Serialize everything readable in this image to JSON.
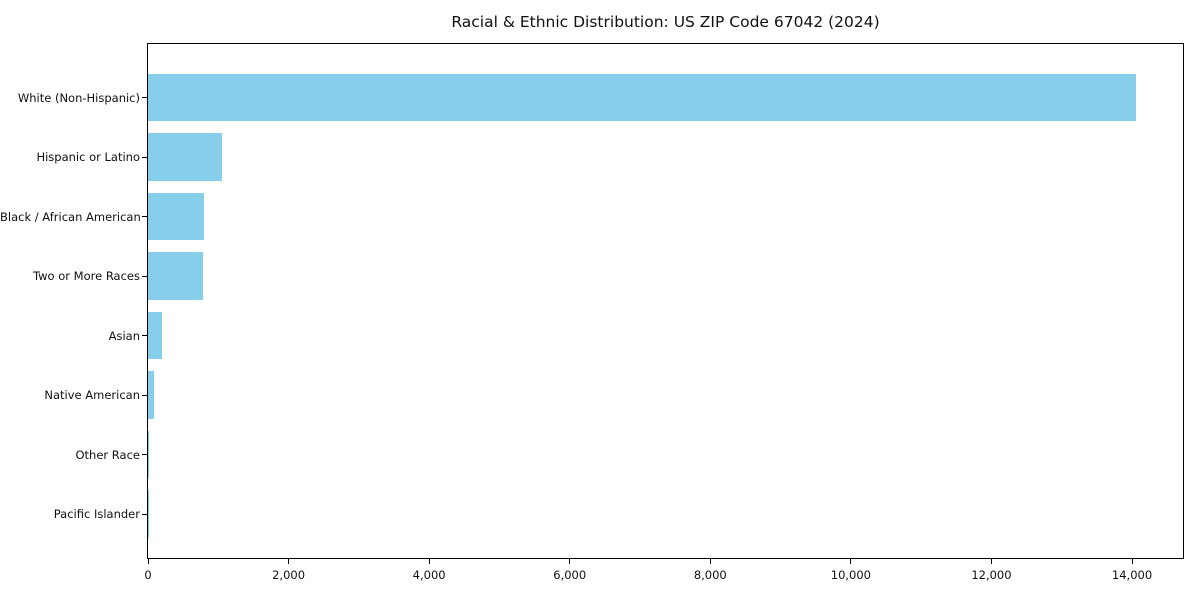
{
  "chart_data": {
    "type": "bar",
    "orientation": "horizontal",
    "title": "Racial & Ethnic Distribution: US ZIP Code 67042 (2024)",
    "categories": [
      "White (Non-Hispanic)",
      "Hispanic or Latino",
      "Black / African American",
      "Two or More Races",
      "Asian",
      "Native American",
      "Other Race",
      "Pacific Islander"
    ],
    "values": [
      14060,
      1050,
      800,
      780,
      195,
      80,
      20,
      5
    ],
    "bar_color": "#87CEEB",
    "background_color": "#ffffff",
    "spine_color": "#000000",
    "text_color": "#111111",
    "xlabel": "",
    "ylabel": "",
    "xlim": [
      0,
      14725
    ],
    "xticks": {
      "values": [
        0,
        2000,
        4000,
        6000,
        8000,
        10000,
        12000,
        14000
      ],
      "labels": [
        "0",
        "2,000",
        "4,000",
        "6,000",
        "8,000",
        "10,000",
        "12,000",
        "14,000"
      ]
    },
    "grid": false,
    "legend": null
  }
}
